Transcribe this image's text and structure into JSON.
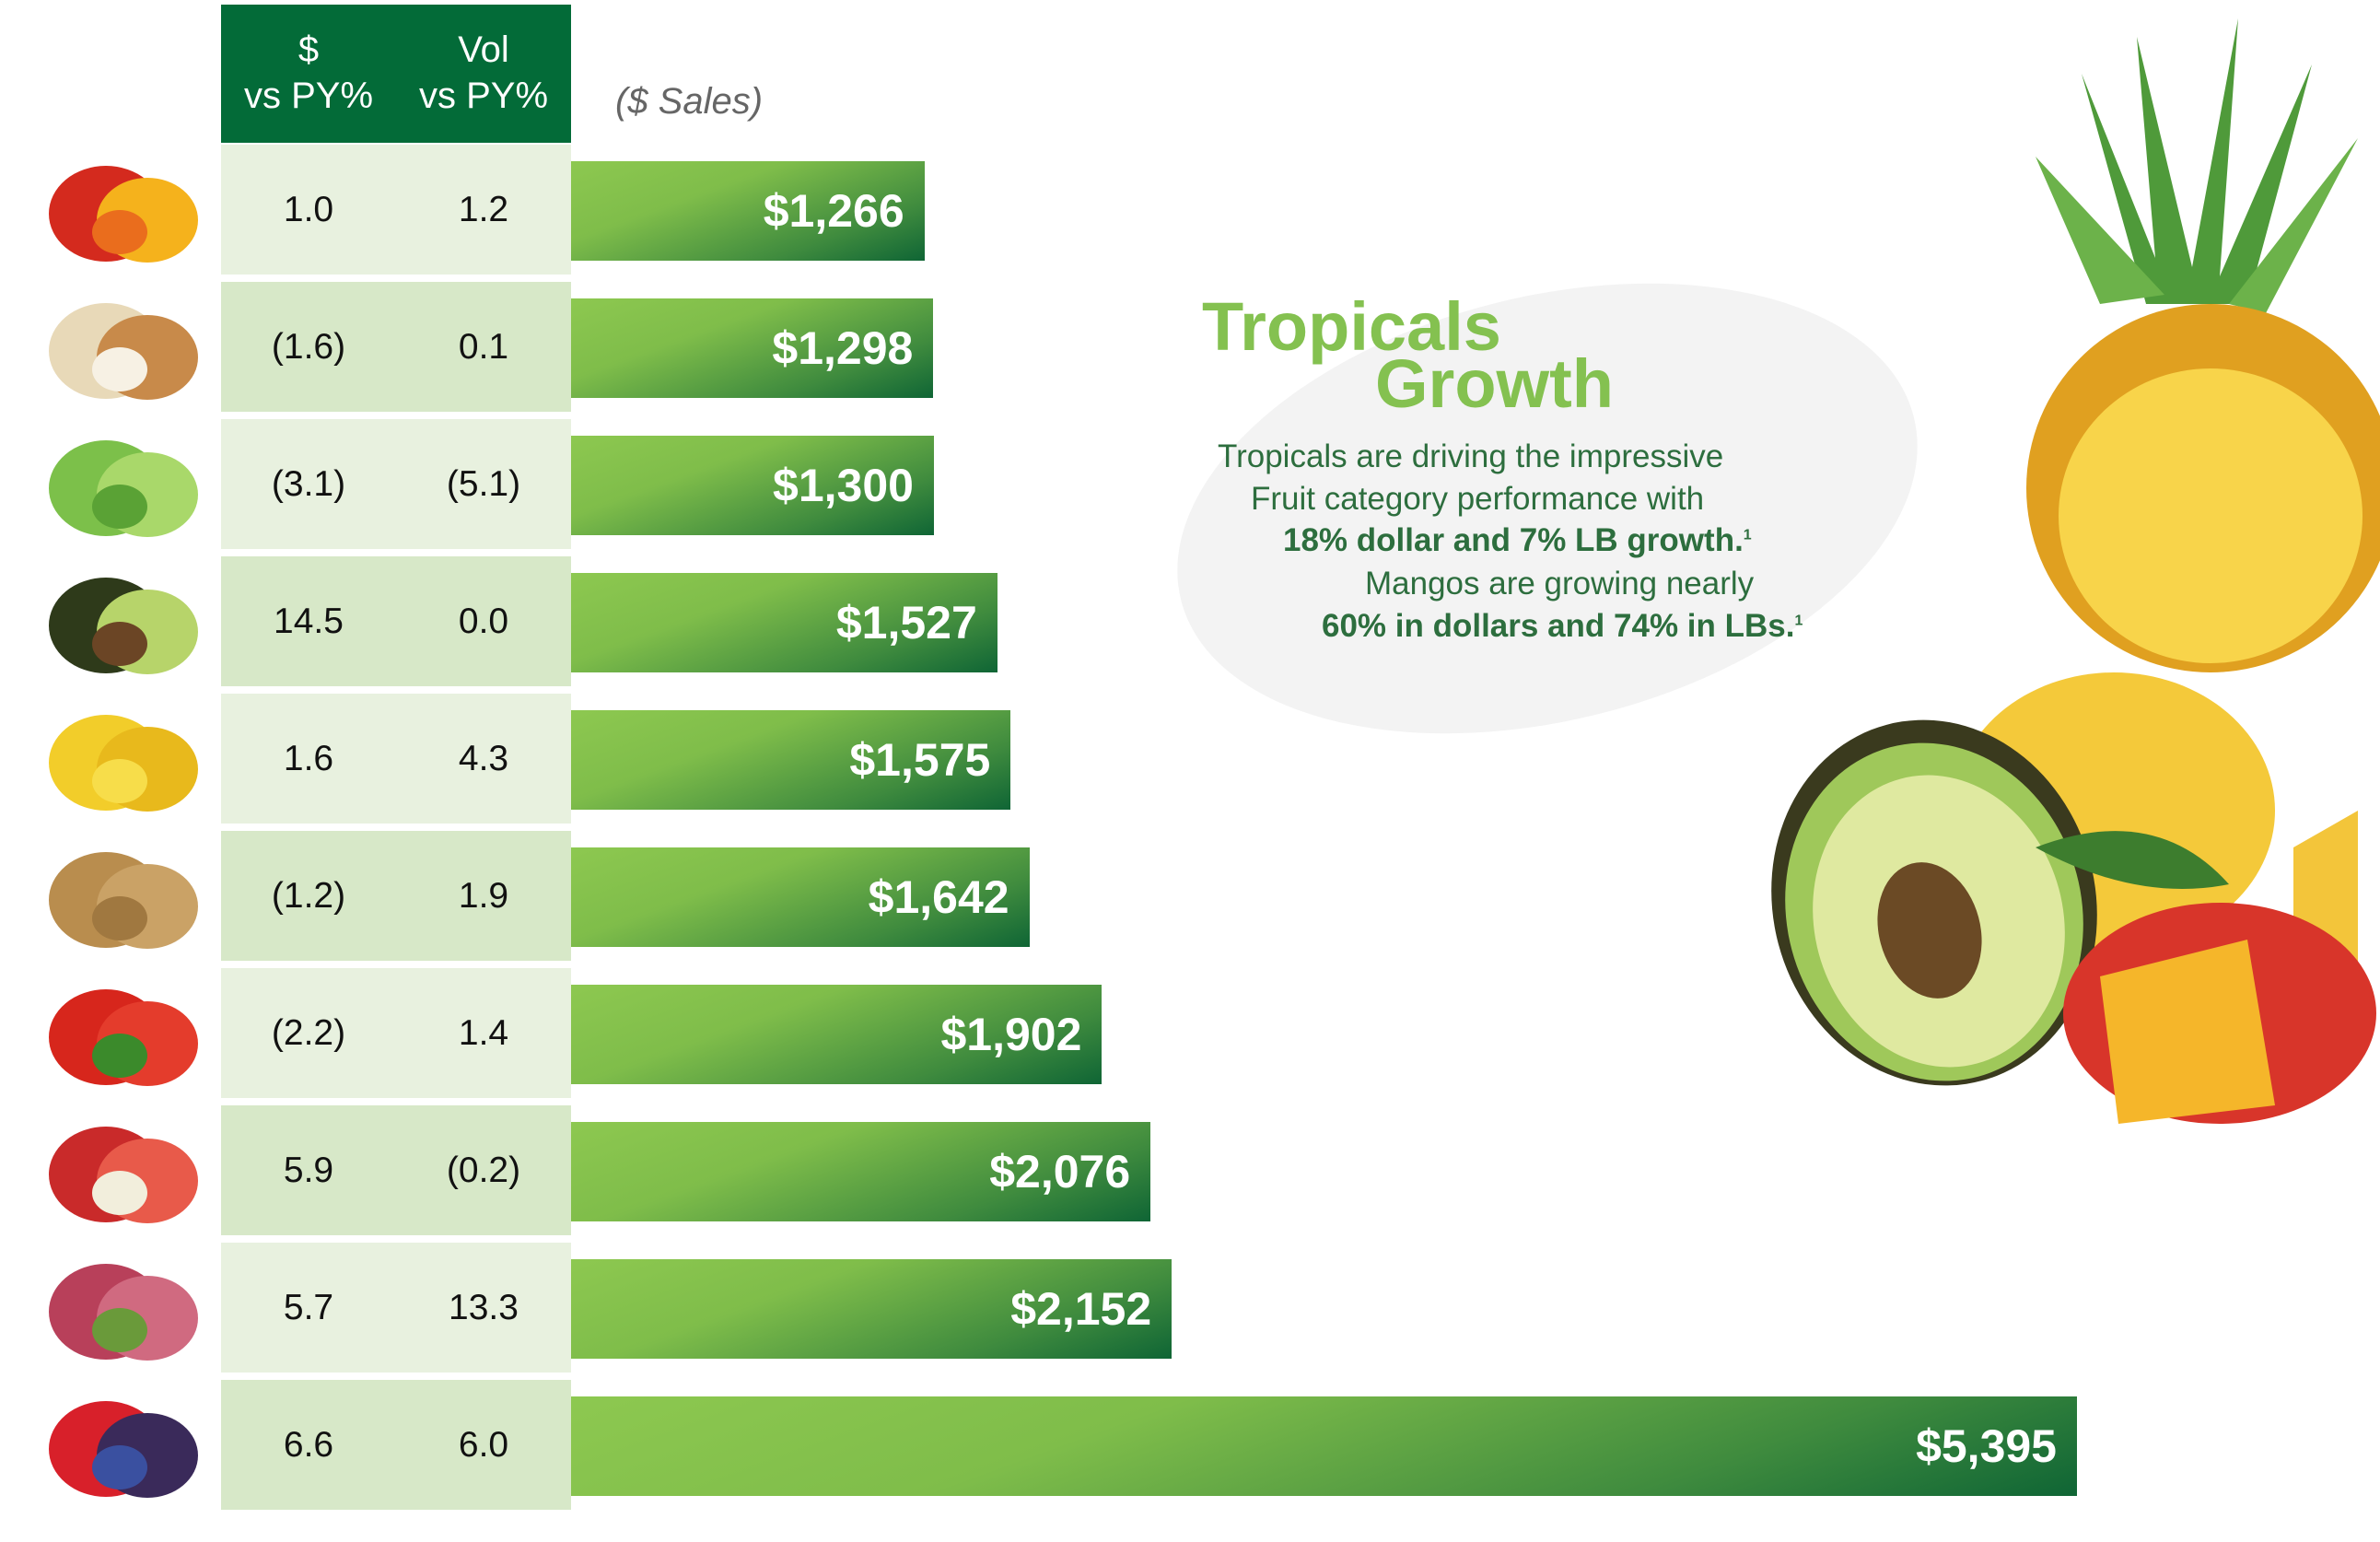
{
  "header": {
    "col1_line1": "$",
    "col1_line2": "vs PY%",
    "col2_line1": "Vol",
    "col2_line2": "vs PY%",
    "sales_unit": "($ Sales)"
  },
  "callout": {
    "title_line1": "Tropicals",
    "title_line2": "Growth",
    "line1": "Tropicals are driving the impressive",
    "line2": "Fruit category performance with",
    "line3": "18% dollar and 7% LB growth.",
    "line3_sup": "1",
    "line4": "Mangos are growing nearly",
    "line5": "60% in dollars and 74% in LBs.",
    "line5_sup": "1"
  },
  "colors": {
    "header_bg": "#036b38",
    "row_light": "#e8f1df",
    "row_dark": "#d7e8c8",
    "bar_light": "#8dc850",
    "bar_dark": "#0f6535",
    "title_green": "#84c150",
    "body_green": "#2d6e3e"
  },
  "chart_data": {
    "type": "bar",
    "orientation": "horizontal",
    "ylabel": "($ Sales)",
    "categories_icons": [
      "peppers-icon",
      "onion-icon",
      "lettuce-icon",
      "avocado-icon",
      "bananas-icon",
      "potatoes-icon",
      "tomato-icon",
      "apple-icon",
      "grapes-icon",
      "berries-icon"
    ],
    "values": [
      1266,
      1298,
      1300,
      1527,
      1575,
      1642,
      1902,
      2076,
      2152,
      5395
    ],
    "labels": [
      "$1,266",
      "$1,298",
      "$1,300",
      "$1,527",
      "$1,575",
      "$1,642",
      "$1,902",
      "$2,076",
      "$2,152",
      "$5,395"
    ],
    "dollar_vs_py": [
      "1.0",
      "(1.6)",
      "(3.1)",
      "14.5",
      "1.6",
      "(1.2)",
      "(2.2)",
      "5.9",
      "5.7",
      "6.6"
    ],
    "vol_vs_py": [
      "1.2",
      "0.1",
      "(5.1)",
      "0.0",
      "4.3",
      "1.9",
      "1.4",
      "(0.2)",
      "13.3",
      "6.0"
    ],
    "xlim": [
      0,
      5395
    ],
    "grid": false
  }
}
